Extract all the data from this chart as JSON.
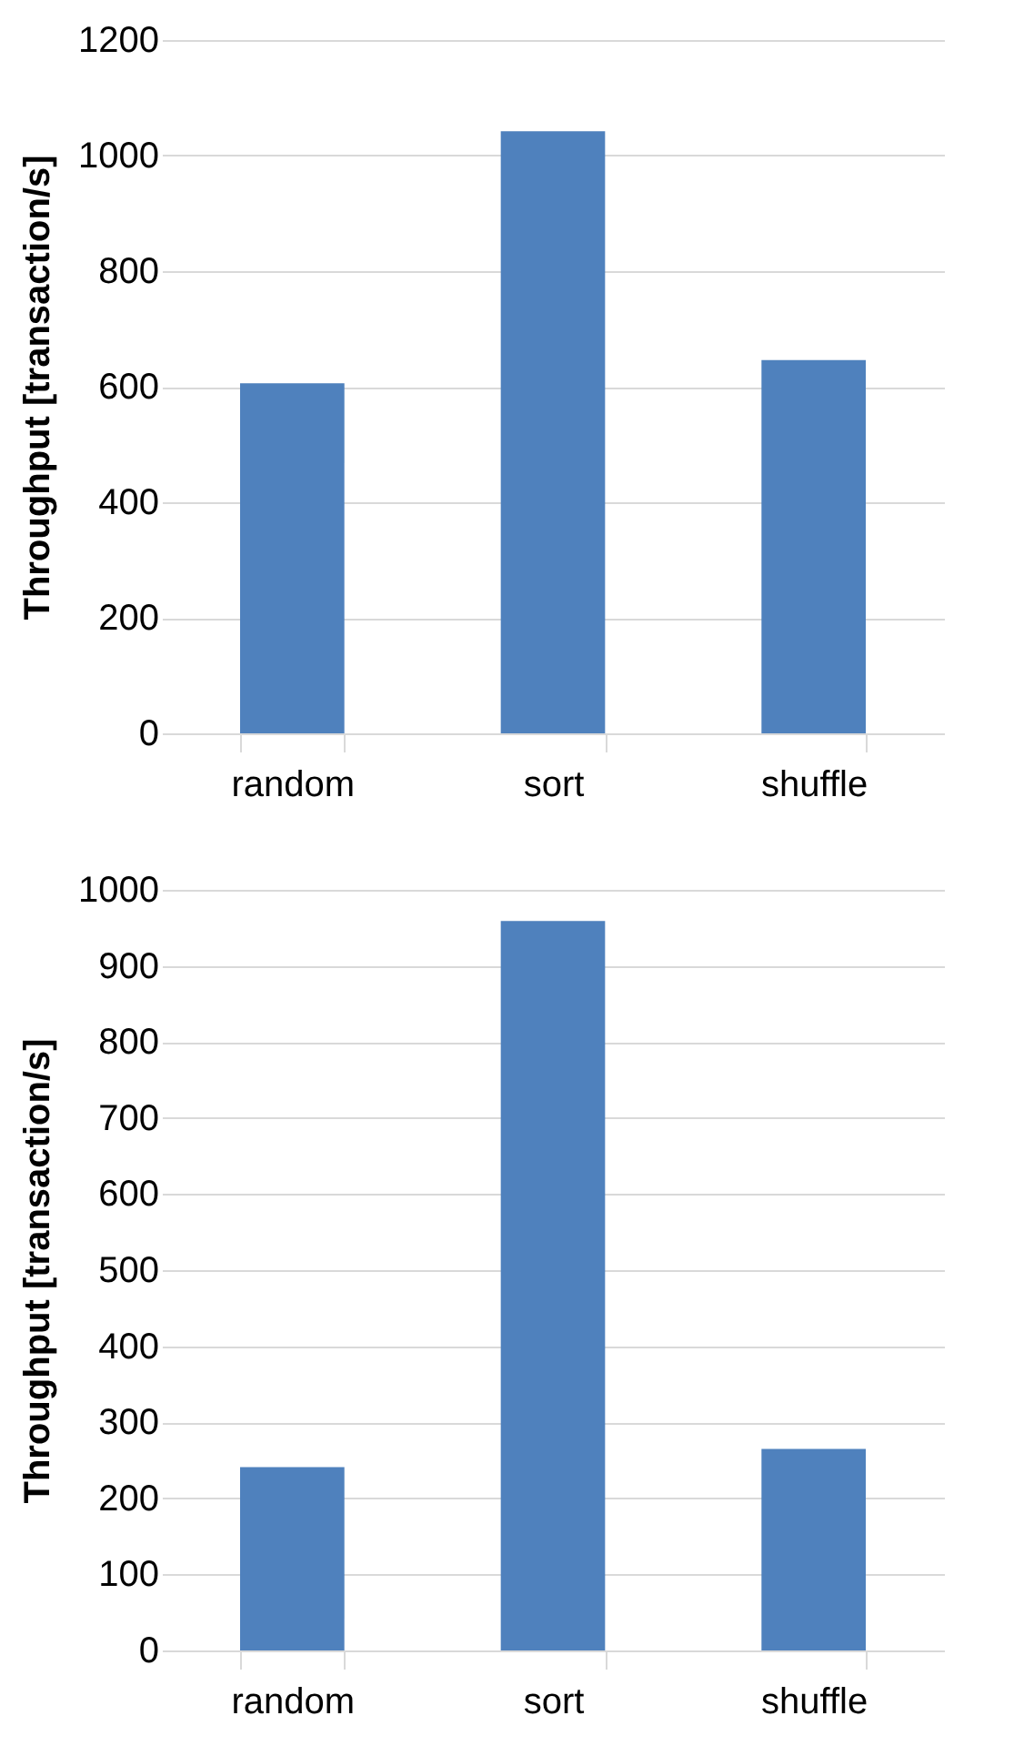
{
  "chart_data": [
    {
      "type": "bar",
      "categories": [
        "random",
        "sort",
        "shuffle"
      ],
      "values": [
        606,
        1042,
        646
      ],
      "color": "#4f81bd",
      "ylabel": "Throughput [transaction/s]",
      "ylim": [
        0,
        1200
      ],
      "yticks": [
        0,
        200,
        400,
        600,
        800,
        1000,
        1200
      ],
      "grid": "y"
    },
    {
      "type": "bar",
      "categories": [
        "random",
        "sort",
        "shuffle"
      ],
      "values": [
        241,
        959,
        265
      ],
      "color": "#4f81bd",
      "ylabel": "Throughput [transaction/s]",
      "ylim": [
        0,
        1000
      ],
      "yticks": [
        0,
        100,
        200,
        300,
        400,
        500,
        600,
        700,
        800,
        900,
        1000
      ],
      "grid": "y"
    }
  ]
}
